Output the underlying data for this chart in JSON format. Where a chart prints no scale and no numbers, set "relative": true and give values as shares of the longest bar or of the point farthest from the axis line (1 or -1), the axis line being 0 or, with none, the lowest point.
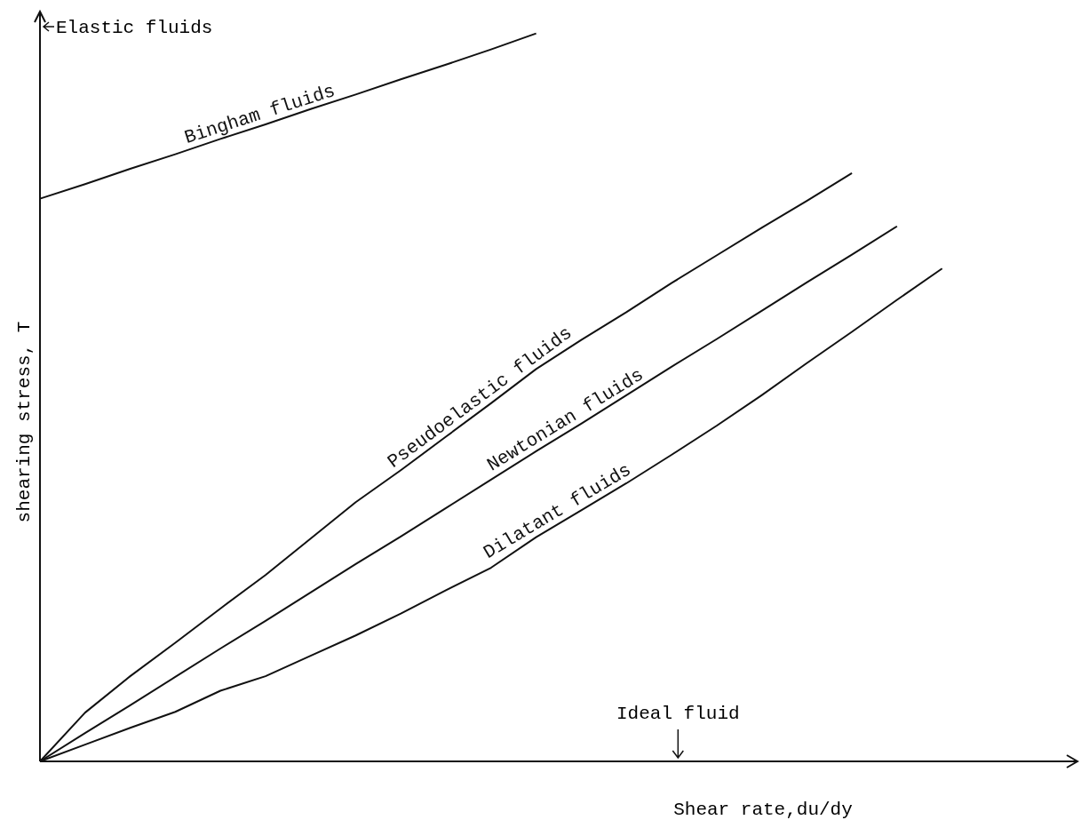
{
  "chart_data": {
    "type": "line",
    "relative": true,
    "xlabel": "Shear rate,du/dy",
    "ylabel": "shearing stress, T",
    "legend": false,
    "marker": "none",
    "line_style": "solid",
    "annotations": [
      "Elastic fluids",
      "Ideal fluid"
    ],
    "categories": [
      null,
      null,
      null,
      null,
      null,
      null,
      null,
      null,
      null,
      null,
      null,
      null,
      null,
      null,
      null,
      null,
      null,
      null,
      null,
      null,
      null,
      null,
      null,
      null
    ],
    "series": [
      {
        "name": "Bingham fluids",
        "color": "#111111",
        "values": [
          0.773,
          0.793,
          0.814,
          0.834,
          0.855,
          0.875,
          0.896,
          0.916,
          0.937,
          0.957,
          0.978,
          1.0,
          null,
          null,
          null,
          null,
          null,
          null,
          null,
          null,
          null,
          null,
          null,
          null
        ]
      },
      {
        "name": "Pseudoelastic fluids",
        "color": "#111111",
        "values": [
          0,
          0.067,
          0.117,
          0.163,
          0.21,
          0.256,
          0.306,
          0.356,
          0.4,
          0.446,
          0.492,
          0.539,
          0.579,
          0.617,
          0.657,
          0.695,
          0.733,
          0.77,
          0.808,
          null,
          null,
          null,
          null,
          null
        ]
      },
      {
        "name": "Newtonian fluids",
        "color": "#111111",
        "values": [
          0,
          0.039,
          0.077,
          0.116,
          0.155,
          0.193,
          0.232,
          0.271,
          0.309,
          0.348,
          0.387,
          0.426,
          0.464,
          0.503,
          0.542,
          0.58,
          0.619,
          0.658,
          0.696,
          0.735,
          null,
          null,
          null,
          null
        ]
      },
      {
        "name": "Dilatant fluids",
        "color": "#111111",
        "values": [
          0,
          0.023,
          0.046,
          0.068,
          0.097,
          0.117,
          0.145,
          0.173,
          0.203,
          0.235,
          0.266,
          0.308,
          0.345,
          0.382,
          0.421,
          0.461,
          0.503,
          0.547,
          0.59,
          0.634,
          0.677,
          null,
          null,
          null
        ]
      }
    ]
  }
}
